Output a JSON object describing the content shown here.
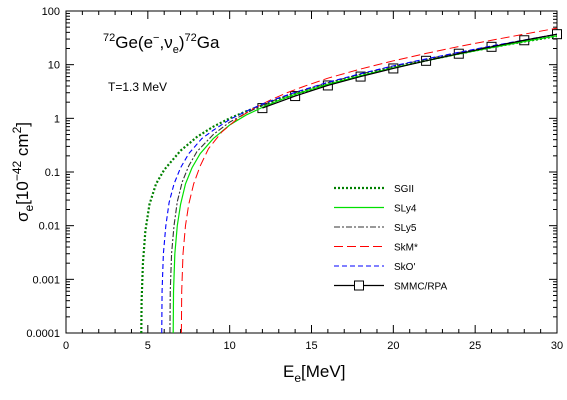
{
  "chart_data": {
    "type": "line",
    "title_parts": {
      "a_sup": "72",
      "a_main": "Ge(e",
      "a_sup2": "−",
      "a_comma": ",ν",
      "a_sub": "e",
      "a_close": ")",
      "b_sup": "72",
      "b_main": "Ga"
    },
    "annotation": "T=1.3 MeV",
    "xlabel_main": "E",
    "xlabel_sub": "e",
    "xlabel_unit": "[MeV]",
    "ylabel_main": "σ",
    "ylabel_sub": "e",
    "ylabel_unit_pre": "[10",
    "ylabel_unit_sup": "−42",
    "ylabel_unit_mid": " cm",
    "ylabel_unit_sup2": "2",
    "ylabel_unit_post": "]",
    "xlim": [
      0,
      30
    ],
    "ylim": [
      0.0001,
      100
    ],
    "yscale": "log",
    "x_ticks": [
      0,
      5,
      10,
      15,
      20,
      25,
      30
    ],
    "x_tick_labels": [
      "0",
      "5",
      "10",
      "15",
      "20",
      "25",
      "30"
    ],
    "y_ticks": [
      0.0001,
      0.001,
      0.01,
      0.1,
      1,
      10,
      100
    ],
    "y_tick_labels": [
      "0.0001",
      "0.001",
      "0.01",
      "0.1",
      "1",
      "10",
      "100"
    ],
    "legend_position": "center-right",
    "series": [
      {
        "name": "SGII",
        "color": "#008000",
        "style": "dotted",
        "x": [
          4.6,
          4.62,
          4.7,
          4.85,
          5.1,
          5.5,
          6.0,
          7.0,
          8.0,
          9.0,
          10.0,
          11.0,
          12.0,
          13.0,
          14.0,
          16.0,
          18.0,
          20.0,
          22.0,
          24.0,
          26.0,
          28.0,
          30.0
        ],
        "y": [
          0.0001,
          0.0004,
          0.002,
          0.008,
          0.025,
          0.06,
          0.11,
          0.25,
          0.45,
          0.7,
          1.0,
          1.35,
          1.75,
          2.2,
          2.8,
          4.3,
          6.3,
          8.8,
          12.0,
          16.0,
          21.0,
          27.0,
          34.0
        ]
      },
      {
        "name": "SLy4",
        "color": "#00e000",
        "style": "solid",
        "x": [
          6.55,
          6.57,
          6.65,
          6.8,
          7.0,
          7.3,
          7.7,
          8.2,
          9.0,
          10.0,
          11.0,
          12.0,
          13.0,
          14.0,
          16.0,
          18.0,
          20.0,
          22.0,
          24.0,
          26.0,
          28.0,
          30.0
        ],
        "y": [
          0.0001,
          0.0006,
          0.003,
          0.01,
          0.025,
          0.06,
          0.12,
          0.22,
          0.42,
          0.75,
          1.15,
          1.6,
          2.15,
          2.8,
          4.3,
          6.2,
          8.7,
          11.8,
          15.8,
          20.8,
          27.0,
          34.5
        ]
      },
      {
        "name": "SLy5",
        "color": "#333333",
        "style": "dashdot",
        "x": [
          6.35,
          6.37,
          6.45,
          6.6,
          6.8,
          7.1,
          7.5,
          8.0,
          9.0,
          10.0,
          11.0,
          12.0,
          13.0,
          14.0,
          16.0,
          18.0,
          20.0,
          22.0,
          24.0,
          26.0,
          28.0,
          30.0
        ],
        "y": [
          0.0001,
          0.0006,
          0.003,
          0.01,
          0.028,
          0.065,
          0.13,
          0.24,
          0.5,
          0.85,
          1.25,
          1.75,
          2.35,
          3.0,
          4.6,
          6.7,
          9.3,
          12.6,
          16.8,
          22.0,
          28.5,
          37.0
        ]
      },
      {
        "name": "SkM*",
        "color": "#ff0000",
        "style": "longdash",
        "x": [
          7.05,
          7.07,
          7.15,
          7.3,
          7.5,
          7.8,
          8.2,
          8.7,
          9.5,
          10.5,
          11.5,
          12.5,
          13.5,
          14.5,
          16.0,
          18.0,
          20.0,
          22.0,
          24.0,
          26.0,
          28.0,
          30.0
        ],
        "y": [
          0.0001,
          0.0006,
          0.003,
          0.01,
          0.025,
          0.06,
          0.13,
          0.27,
          0.55,
          1.0,
          1.55,
          2.2,
          3.0,
          3.9,
          5.6,
          8.3,
          11.8,
          16.2,
          21.8,
          28.5,
          37.0,
          48.0
        ]
      },
      {
        "name": "SkO'",
        "color": "#0000ff",
        "style": "dashed",
        "x": [
          5.85,
          5.87,
          5.95,
          6.1,
          6.3,
          6.6,
          7.0,
          7.5,
          8.3,
          9.0,
          10.0,
          11.0,
          12.0,
          13.0,
          14.0,
          16.0,
          18.0,
          20.0,
          22.0,
          24.0,
          26.0,
          28.0,
          30.0
        ],
        "y": [
          0.0001,
          0.0006,
          0.003,
          0.01,
          0.027,
          0.06,
          0.12,
          0.22,
          0.42,
          0.6,
          0.95,
          1.35,
          1.85,
          2.4,
          3.05,
          4.7,
          6.8,
          9.5,
          12.8,
          17.0,
          22.3,
          28.8,
          37.0
        ]
      },
      {
        "name": "SMMC/RPA",
        "color": "#000000",
        "style": "solid-markers",
        "x": [
          12,
          14,
          16,
          18,
          20,
          22,
          24,
          26,
          28,
          30
        ],
        "y": [
          1.55,
          2.6,
          4.1,
          6.0,
          8.5,
          11.8,
          16.0,
          21.5,
          28.5,
          37.0
        ]
      }
    ]
  }
}
